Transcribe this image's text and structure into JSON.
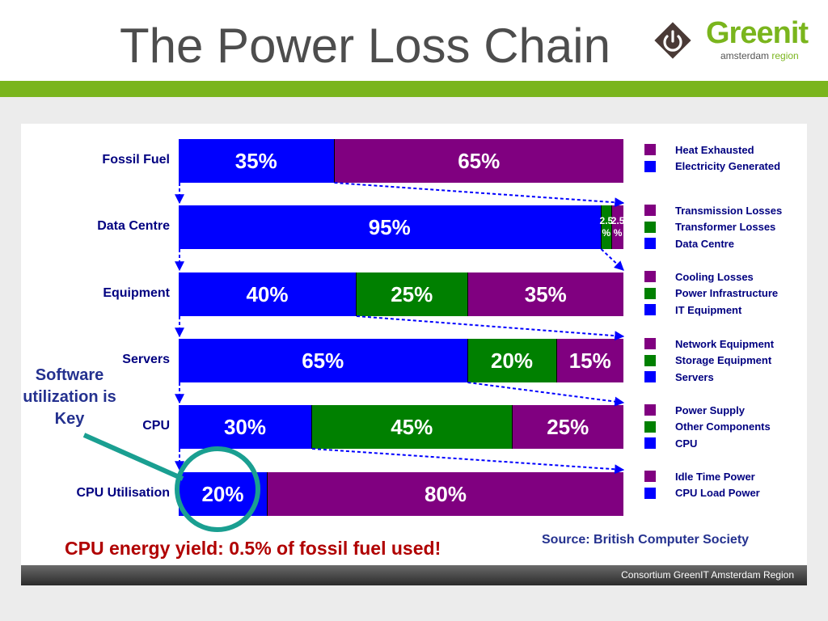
{
  "slide": {
    "title": "The Power Loss Chain",
    "logo": {
      "name": "Greenit",
      "subtitle_main": "amsterdam",
      "subtitle_region": "region"
    },
    "footer": "Consortium GreenIT Amsterdam Region",
    "callout": "Software utilization is Key",
    "yield_note": "CPU energy yield: 0.5% of fossil fuel used!",
    "source": "Source: British Computer Society"
  },
  "colors": {
    "blue": "#0000ff",
    "purple": "#800080",
    "green": "#008000",
    "accent_green": "#7ab51d",
    "teal_circle": "#1a9f91",
    "label_navy": "#000080"
  },
  "chart_data": {
    "type": "stacked-bar-chain",
    "rows": [
      {
        "label": "Fossil Fuel",
        "segments": [
          {
            "value": 35,
            "text": "35%",
            "color": "blue"
          },
          {
            "value": 65,
            "text": "65%",
            "color": "purple"
          }
        ],
        "legend": [
          {
            "text": "Heat Exhausted",
            "color": "purple"
          },
          {
            "text": "Electricity Generated",
            "color": "blue"
          }
        ]
      },
      {
        "label": "Data Centre",
        "segments": [
          {
            "value": 95,
            "text": "95%",
            "color": "blue"
          },
          {
            "value": 2.5,
            "text": "2.5\n%",
            "color": "green"
          },
          {
            "value": 2.5,
            "text": "2.5\n%",
            "color": "purple"
          }
        ],
        "legend": [
          {
            "text": "Transmission Losses",
            "color": "purple"
          },
          {
            "text": "Transformer Losses",
            "color": "green"
          },
          {
            "text": "Data Centre",
            "color": "blue"
          }
        ]
      },
      {
        "label": "Equipment",
        "segments": [
          {
            "value": 40,
            "text": "40%",
            "color": "blue"
          },
          {
            "value": 25,
            "text": "25%",
            "color": "green"
          },
          {
            "value": 35,
            "text": "35%",
            "color": "purple"
          }
        ],
        "legend": [
          {
            "text": "Cooling Losses",
            "color": "purple"
          },
          {
            "text": "Power Infrastructure",
            "color": "green"
          },
          {
            "text": "IT Equipment",
            "color": "blue"
          }
        ]
      },
      {
        "label": "Servers",
        "segments": [
          {
            "value": 65,
            "text": "65%",
            "color": "blue"
          },
          {
            "value": 20,
            "text": "20%",
            "color": "green"
          },
          {
            "value": 15,
            "text": "15%",
            "color": "purple"
          }
        ],
        "legend": [
          {
            "text": "Network Equipment",
            "color": "purple"
          },
          {
            "text": "Storage Equipment",
            "color": "green"
          },
          {
            "text": "Servers",
            "color": "blue"
          }
        ]
      },
      {
        "label": "CPU",
        "segments": [
          {
            "value": 30,
            "text": "30%",
            "color": "blue"
          },
          {
            "value": 45,
            "text": "45%",
            "color": "green"
          },
          {
            "value": 25,
            "text": "25%",
            "color": "purple"
          }
        ],
        "legend": [
          {
            "text": "Power Supply",
            "color": "purple"
          },
          {
            "text": "Other Components",
            "color": "green"
          },
          {
            "text": "CPU",
            "color": "blue"
          }
        ]
      },
      {
        "label": "CPU Utilisation",
        "segments": [
          {
            "value": 20,
            "text": "20%",
            "color": "blue"
          },
          {
            "value": 80,
            "text": "80%",
            "color": "purple"
          }
        ],
        "legend": [
          {
            "text": "Idle Time Power",
            "color": "purple"
          },
          {
            "text": "CPU Load Power",
            "color": "blue"
          }
        ]
      }
    ]
  }
}
